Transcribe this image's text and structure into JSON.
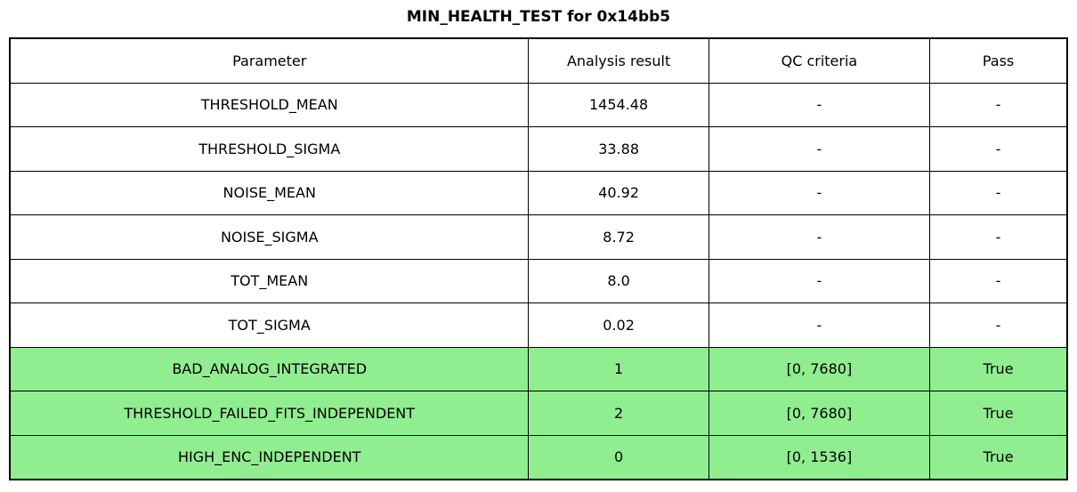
{
  "title": "MIN_HEALTH_TEST for 0x14bb5",
  "colors": {
    "pass_row_background": "#90ee90",
    "border": "#000000",
    "background": "#ffffff",
    "text": "#000000"
  },
  "chart_data": {
    "type": "table",
    "title": "MIN_HEALTH_TEST for 0x14bb5",
    "columns": [
      "Parameter",
      "Analysis result",
      "QC criteria",
      "Pass"
    ],
    "rows": [
      {
        "cells": [
          "THRESHOLD_MEAN",
          "1454.48",
          "-",
          "-"
        ],
        "highlighted": false
      },
      {
        "cells": [
          "THRESHOLD_SIGMA",
          "33.88",
          "-",
          "-"
        ],
        "highlighted": false
      },
      {
        "cells": [
          "NOISE_MEAN",
          "40.92",
          "-",
          "-"
        ],
        "highlighted": false
      },
      {
        "cells": [
          "NOISE_SIGMA",
          "8.72",
          "-",
          "-"
        ],
        "highlighted": false
      },
      {
        "cells": [
          "TOT_MEAN",
          "8.0",
          "-",
          "-"
        ],
        "highlighted": false
      },
      {
        "cells": [
          "TOT_SIGMA",
          "0.02",
          "-",
          "-"
        ],
        "highlighted": false
      },
      {
        "cells": [
          "BAD_ANALOG_INTEGRATED",
          "1",
          "[0, 7680]",
          "True"
        ],
        "highlighted": true
      },
      {
        "cells": [
          "THRESHOLD_FAILED_FITS_INDEPENDENT",
          "2",
          "[0, 7680]",
          "True"
        ],
        "highlighted": true
      },
      {
        "cells": [
          "HIGH_ENC_INDEPENDENT",
          "0",
          "[0, 1536]",
          "True"
        ],
        "highlighted": true
      }
    ]
  }
}
